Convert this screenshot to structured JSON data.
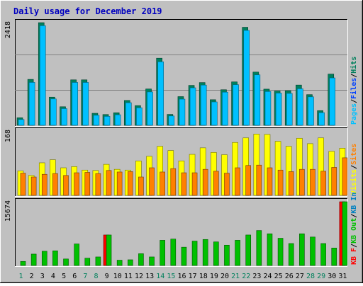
{
  "title": "Daily usage for December 2019",
  "colors": {
    "background": "#C0C0C0",
    "title": "#0000C0",
    "hits": "#00805C",
    "files": "#0040FF",
    "pages": "#00C0FF",
    "visits": "#FFFF00",
    "sites": "#FF8000",
    "kb_in": "#0080C0",
    "kb_out": "#00C000",
    "kb_f": "#FF0000",
    "day_green": "#00805C",
    "day_blue": "#0000FF"
  },
  "chart_data": [
    {
      "type": "bar",
      "ymax_label": "2418",
      "ylim": [
        0,
        2418
      ],
      "legend": [
        "Pages",
        "/",
        "Files",
        "/",
        "Hits"
      ],
      "series": [
        {
          "name": "Hits",
          "values": [
            178,
            1082,
            2418,
            663,
            437,
            1071,
            1071,
            283,
            254,
            296,
            586,
            464,
            856,
            1581,
            257,
            676,
            940,
            1007,
            603,
            838,
            1023,
            2309,
            1254,
            852,
            808,
            814,
            948,
            722,
            346,
            1207,
            0
          ]
        },
        {
          "name": "Pages",
          "values": [
            170,
            1044,
            2380,
            654,
            426,
            1043,
            1043,
            270,
            244,
            282,
            566,
            447,
            819,
            1530,
            253,
            650,
            917,
            981,
            584,
            814,
            990,
            2269,
            1222,
            829,
            793,
            785,
            895,
            704,
            332,
            1150,
            0
          ]
        }
      ]
    },
    {
      "type": "bar",
      "ymax_label": "168",
      "ylim": [
        0,
        168
      ],
      "legend": [
        "Visits",
        "/",
        "Sites"
      ],
      "series": [
        {
          "name": "Visits",
          "values": [
            64,
            52,
            85,
            93,
            72,
            75,
            66,
            65,
            81,
            68,
            66,
            90,
            102,
            128,
            117,
            90,
            107,
            124,
            112,
            106,
            138,
            150,
            160,
            159,
            141,
            128,
            149,
            135,
            150,
            115,
            123
          ]
        },
        {
          "name": "Sites",
          "values": [
            58,
            48,
            55,
            57,
            52,
            59,
            60,
            57,
            65,
            61,
            62,
            48,
            72,
            61,
            70,
            59,
            59,
            68,
            63,
            58,
            72,
            78,
            79,
            72,
            66,
            62,
            68,
            68,
            63,
            73,
            98
          ]
        }
      ]
    },
    {
      "type": "bar",
      "ymax_label": "15674",
      "ylim": [
        0,
        15674
      ],
      "legend": [
        "KB F",
        "/",
        "KB Out",
        "/",
        "KB In"
      ],
      "series": [
        {
          "name": "KB F",
          "values": [
            0,
            0,
            0,
            0,
            0,
            0,
            0,
            0,
            7500,
            0,
            0,
            0,
            0,
            0,
            0,
            0,
            0,
            0,
            0,
            0,
            0,
            0,
            0,
            0,
            0,
            0,
            0,
            0,
            0,
            0,
            15674
          ]
        },
        {
          "name": "KB Out",
          "values": [
            1000,
            2800,
            3500,
            3600,
            1600,
            5300,
            1800,
            2100,
            7500,
            1300,
            1400,
            2900,
            2100,
            6200,
            6500,
            4500,
            6000,
            6400,
            5800,
            5000,
            6200,
            7500,
            8600,
            7800,
            6700,
            5400,
            7800,
            7000,
            5400,
            4300,
            15674
          ]
        }
      ]
    }
  ],
  "days": [
    "1",
    "2",
    "3",
    "4",
    "5",
    "6",
    "7",
    "8",
    "9",
    "10",
    "11",
    "12",
    "13",
    "14",
    "15",
    "16",
    "17",
    "18",
    "19",
    "20",
    "21",
    "22",
    "23",
    "24",
    "25",
    "26",
    "27",
    "28",
    "29",
    "30",
    "31"
  ],
  "weekend_days": [
    "1",
    "7",
    "8",
    "14",
    "15",
    "21",
    "22",
    "28",
    "29"
  ]
}
